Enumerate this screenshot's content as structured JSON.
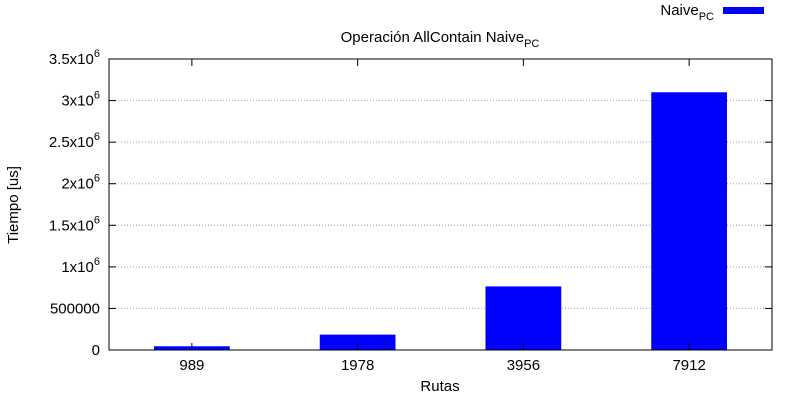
{
  "chart_data": {
    "type": "bar",
    "title_main": "Operación AllContain Naive",
    "title_sub": "PC",
    "xlabel": "Rutas",
    "ylabel": "Tiempo [us]",
    "categories": [
      "989",
      "1978",
      "3956",
      "7912"
    ],
    "series": [
      {
        "name_main": "Naive",
        "name_sub": "PC",
        "color": "#0000ff",
        "values": [
          45000,
          185000,
          765000,
          3100000
        ]
      }
    ],
    "ylim": [
      0,
      3500000
    ],
    "yticks": [
      {
        "value": 0,
        "base": "0",
        "exp": ""
      },
      {
        "value": 500000,
        "base": "500000",
        "exp": ""
      },
      {
        "value": 1000000,
        "base": "1x10",
        "exp": "6"
      },
      {
        "value": 1500000,
        "base": "1.5x10",
        "exp": "6"
      },
      {
        "value": 2000000,
        "base": "2x10",
        "exp": "6"
      },
      {
        "value": 2500000,
        "base": "2.5x10",
        "exp": "6"
      },
      {
        "value": 3000000,
        "base": "3x10",
        "exp": "6"
      },
      {
        "value": 3500000,
        "base": "3.5x10",
        "exp": "6"
      }
    ],
    "grid": "horizontal dotted",
    "legend_position": "top-right"
  }
}
